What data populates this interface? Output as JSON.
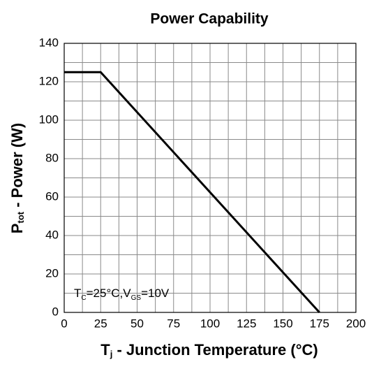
{
  "chart_data": {
    "type": "line",
    "title": "Power Capability",
    "x_label": [
      "T",
      "j",
      " - Junction Temperature (°C)"
    ],
    "y_label": [
      "P",
      "tot",
      " - Power (W)"
    ],
    "annotation": [
      "T",
      "C",
      "=25°C,V",
      "GS",
      "=10V"
    ],
    "x": [
      0,
      25,
      175
    ],
    "values": [
      125,
      125,
      0
    ],
    "color": "#000000",
    "xlim": [
      0,
      200
    ],
    "xticks": [
      0,
      25,
      50,
      75,
      100,
      125,
      150,
      175,
      200
    ],
    "ylim": [
      0,
      140
    ],
    "yticks": [
      0,
      20,
      40,
      60,
      80,
      100,
      120,
      140
    ],
    "grid": true,
    "minor_grid": true
  }
}
